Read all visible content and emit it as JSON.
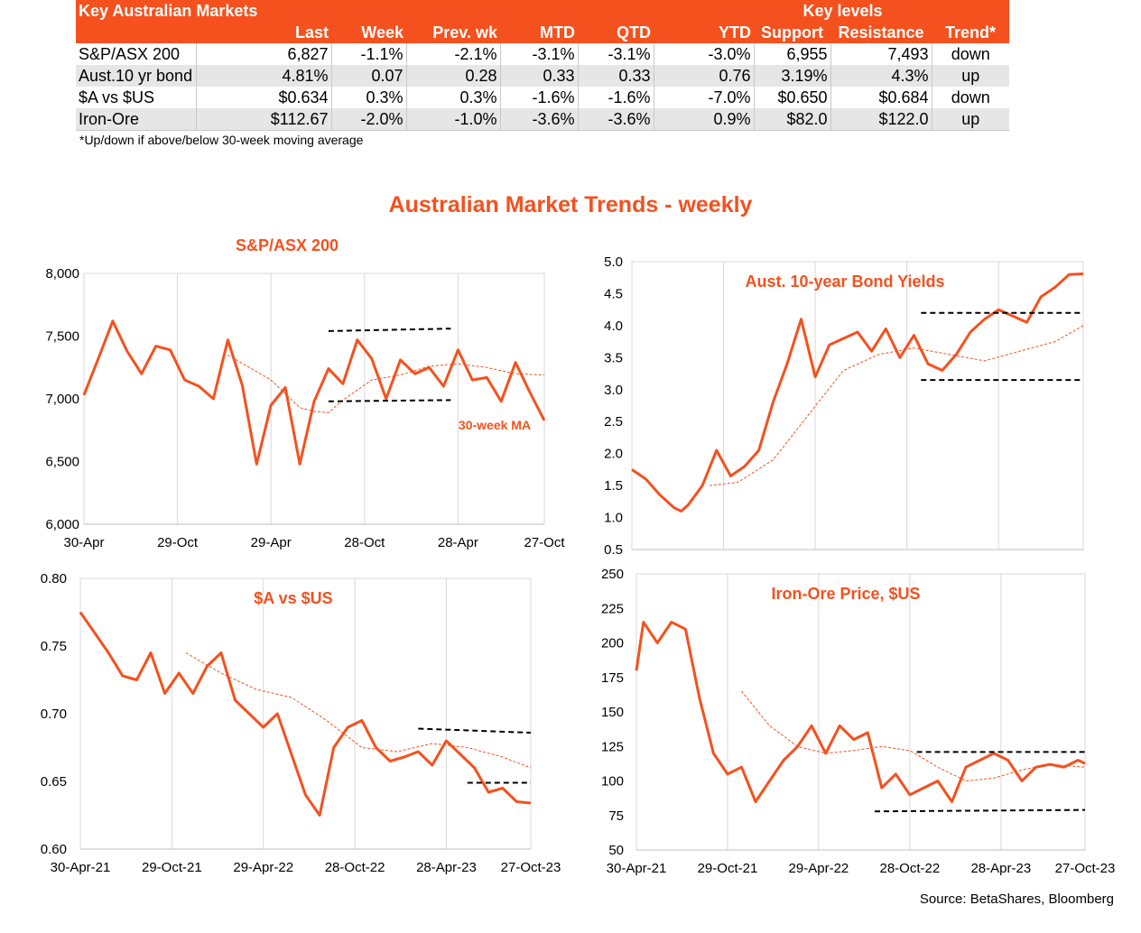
{
  "table": {
    "header_row1": [
      "Key Australian Markets",
      "",
      "",
      "",
      "",
      "",
      "",
      "Key levels",
      "",
      ""
    ],
    "header_row2": [
      "",
      "Last",
      "Week",
      "Prev. wk",
      "MTD",
      "QTD",
      "YTD",
      "Support",
      "Resistance",
      "Trend*"
    ],
    "rows": [
      [
        "S&P/ASX 200",
        "6,827",
        "-1.1%",
        "-2.1%",
        "-3.1%",
        "-3.1%",
        "-3.0%",
        "6,955",
        "7,493",
        "down"
      ],
      [
        "Aust.10 yr bond",
        "4.81%",
        "0.07",
        "0.28",
        "0.33",
        "0.33",
        "0.76",
        "3.19%",
        "4.3%",
        "up"
      ],
      [
        "$A vs $US",
        "$0.634",
        "0.3%",
        "0.3%",
        "-1.6%",
        "-1.6%",
        "-7.0%",
        "$0.650",
        "$0.684",
        "down"
      ],
      [
        "Iron-Ore",
        "$112.67",
        "-2.0%",
        "-1.0%",
        "-3.6%",
        "-3.6%",
        "0.9%",
        "$82.0",
        "$122.0",
        "up"
      ]
    ],
    "footnote": "*Up/down if above/below 30-week moving average"
  },
  "main_title": "Australian Market Trends - weekly",
  "source": "Source:  BetaShares, Bloomberg",
  "colors": {
    "accent": "#F4511E",
    "series": "#F4511E",
    "ma": "#F4511E",
    "levels": "#000000"
  },
  "chart_data": [
    {
      "type": "line",
      "title": "S&P/ASX 200",
      "x_start": "2021-04-30",
      "x_end": "2023-10-27",
      "x_unit": "weeks",
      "xticks": [
        "30-Apr",
        "29-Oct",
        "29-Apr",
        "28-Oct",
        "28-Apr",
        "27-Oct"
      ],
      "ylim": [
        6000,
        8000
      ],
      "yticks": [
        6000,
        6500,
        7000,
        7500,
        8000
      ],
      "ytick_labels": [
        "6,000",
        "6,500",
        "7,000",
        "7,500",
        "8,000"
      ],
      "grid": "vertical",
      "annotation": "30-week MA",
      "series": [
        {
          "key": "price",
          "style": "solid",
          "x": [
            0,
            4,
            8,
            12,
            16,
            20,
            24,
            28,
            32,
            36,
            40,
            44,
            48,
            52,
            56,
            60,
            64,
            68,
            72,
            76,
            80,
            84,
            88,
            92,
            96,
            100,
            104,
            108,
            112,
            116,
            120,
            124,
            128
          ],
          "values": [
            7030,
            7320,
            7620,
            7380,
            7200,
            7420,
            7390,
            7150,
            7100,
            7000,
            7470,
            7110,
            6480,
            6950,
            7090,
            6480,
            6980,
            7240,
            7120,
            7470,
            7320,
            7000,
            7310,
            7200,
            7250,
            7100,
            7390,
            7150,
            7170,
            6980,
            7290,
            7050,
            6827
          ]
        },
        {
          "key": "ma30",
          "style": "dashed-thin",
          "x": [
            40,
            52,
            60,
            64,
            68,
            72,
            80,
            88,
            96,
            104,
            112,
            120,
            128
          ],
          "values": [
            7350,
            7150,
            6930,
            6900,
            6890,
            6990,
            7150,
            7190,
            7260,
            7280,
            7250,
            7200,
            7190
          ]
        },
        {
          "key": "support",
          "style": "dashed-black",
          "x": [
            68,
            102
          ],
          "values": [
            6980,
            6990
          ]
        },
        {
          "key": "resistance",
          "style": "dashed-black",
          "x": [
            68,
            102
          ],
          "values": [
            7540,
            7560
          ]
        }
      ]
    },
    {
      "type": "line",
      "title": "Aust. 10-year Bond Yields",
      "x_start": "2021-04-30",
      "x_end": "2023-10-27",
      "x_unit": "weeks",
      "xticks": [],
      "ylim": [
        0.5,
        5.0
      ],
      "yticks": [
        0.5,
        1.0,
        1.5,
        2.0,
        2.5,
        3.0,
        3.5,
        4.0,
        4.5,
        5.0
      ],
      "ytick_labels": [
        "0.5",
        "1.0",
        "1.5",
        "2.0",
        "2.5",
        "3.0",
        "3.5",
        "4.0",
        "4.5",
        "5.0"
      ],
      "grid": "vertical",
      "series": [
        {
          "key": "yield",
          "style": "solid",
          "x": [
            0,
            4,
            8,
            12,
            14,
            16,
            20,
            24,
            28,
            32,
            36,
            40,
            44,
            48,
            52,
            56,
            60,
            64,
            68,
            72,
            76,
            80,
            84,
            88,
            92,
            96,
            100,
            104,
            108,
            112,
            116,
            120,
            124,
            128
          ],
          "values": [
            1.75,
            1.6,
            1.35,
            1.15,
            1.1,
            1.2,
            1.5,
            2.05,
            1.65,
            1.8,
            2.05,
            2.8,
            3.4,
            4.1,
            3.2,
            3.7,
            3.8,
            3.9,
            3.6,
            3.95,
            3.5,
            3.85,
            3.4,
            3.3,
            3.55,
            3.9,
            4.1,
            4.25,
            4.15,
            4.05,
            4.45,
            4.6,
            4.8,
            4.81
          ]
        },
        {
          "key": "ma30",
          "style": "dashed-thin",
          "x": [
            22,
            30,
            40,
            50,
            60,
            70,
            80,
            90,
            100,
            110,
            120,
            128
          ],
          "values": [
            1.5,
            1.55,
            1.9,
            2.6,
            3.3,
            3.55,
            3.65,
            3.55,
            3.45,
            3.6,
            3.75,
            4.0
          ]
        },
        {
          "key": "support",
          "style": "dashed-black",
          "x": [
            82,
            128
          ],
          "values": [
            3.15,
            3.15
          ]
        },
        {
          "key": "resistance",
          "style": "dashed-black",
          "x": [
            82,
            128
          ],
          "values": [
            4.2,
            4.2
          ]
        }
      ]
    },
    {
      "type": "line",
      "title": "$A vs $US",
      "x_start": "2021-04-30",
      "x_end": "2023-10-27",
      "x_unit": "weeks",
      "xticks": [
        "30-Apr-21",
        "29-Oct-21",
        "29-Apr-22",
        "28-Oct-22",
        "28-Apr-23",
        "27-Oct-23"
      ],
      "ylim": [
        0.6,
        0.8
      ],
      "yticks": [
        0.6,
        0.65,
        0.7,
        0.75,
        0.8
      ],
      "ytick_labels": [
        "0.60",
        "0.65",
        "0.70",
        "0.75",
        "0.80"
      ],
      "grid": "vertical",
      "series": [
        {
          "key": "audusd",
          "style": "solid",
          "x": [
            0,
            4,
            8,
            12,
            16,
            20,
            24,
            28,
            32,
            36,
            40,
            44,
            48,
            52,
            56,
            60,
            64,
            68,
            72,
            76,
            80,
            84,
            88,
            92,
            96,
            100,
            104,
            108,
            112,
            116,
            120,
            124,
            128
          ],
          "values": [
            0.775,
            0.76,
            0.745,
            0.728,
            0.725,
            0.745,
            0.715,
            0.73,
            0.715,
            0.735,
            0.745,
            0.71,
            0.7,
            0.69,
            0.7,
            0.67,
            0.64,
            0.625,
            0.675,
            0.69,
            0.695,
            0.675,
            0.665,
            0.668,
            0.672,
            0.662,
            0.68,
            0.67,
            0.66,
            0.642,
            0.645,
            0.635,
            0.634
          ]
        },
        {
          "key": "ma30",
          "style": "dashed-thin",
          "x": [
            30,
            40,
            50,
            60,
            70,
            80,
            90,
            100,
            110,
            120,
            128
          ],
          "values": [
            0.745,
            0.73,
            0.718,
            0.712,
            0.695,
            0.675,
            0.672,
            0.678,
            0.675,
            0.668,
            0.66
          ]
        },
        {
          "key": "support",
          "style": "dashed-black",
          "x": [
            110,
            128
          ],
          "values": [
            0.649,
            0.649
          ]
        },
        {
          "key": "resistance",
          "style": "dashed-black",
          "x": [
            96,
            128
          ],
          "values": [
            0.689,
            0.686
          ]
        }
      ]
    },
    {
      "type": "line",
      "title": "Iron-Ore Price, $US",
      "x_start": "2021-04-30",
      "x_end": "2023-10-27",
      "x_unit": "weeks",
      "xticks": [
        "30-Apr-21",
        "29-Oct-21",
        "29-Apr-22",
        "28-Oct-22",
        "28-Apr-23",
        "27-Oct-23"
      ],
      "ylim": [
        50,
        250
      ],
      "yticks": [
        50,
        75,
        100,
        125,
        150,
        175,
        200,
        225,
        250
      ],
      "ytick_labels": [
        "50",
        "75",
        "100",
        "125",
        "150",
        "175",
        "200",
        "225",
        "250"
      ],
      "grid": "vertical",
      "series": [
        {
          "key": "iron_ore",
          "style": "solid",
          "x": [
            0,
            2,
            6,
            10,
            14,
            18,
            22,
            26,
            30,
            34,
            38,
            42,
            46,
            50,
            54,
            58,
            62,
            66,
            70,
            74,
            78,
            82,
            86,
            90,
            94,
            98,
            102,
            106,
            110,
            114,
            118,
            122,
            126,
            128
          ],
          "values": [
            180,
            215,
            200,
            215,
            210,
            160,
            120,
            105,
            110,
            85,
            100,
            115,
            125,
            140,
            120,
            140,
            130,
            135,
            95,
            105,
            90,
            95,
            100,
            85,
            110,
            115,
            120,
            115,
            100,
            110,
            112,
            110,
            115,
            112.67
          ]
        },
        {
          "key": "ma30",
          "style": "dashed-thin",
          "x": [
            30,
            38,
            46,
            54,
            62,
            70,
            78,
            86,
            94,
            102,
            110,
            118,
            128
          ],
          "values": [
            165,
            140,
            125,
            120,
            122,
            125,
            122,
            110,
            100,
            102,
            108,
            112,
            110
          ]
        },
        {
          "key": "support",
          "style": "dashed-black",
          "x": [
            68,
            128
          ],
          "values": [
            78,
            79
          ]
        },
        {
          "key": "resistance",
          "style": "dashed-black",
          "x": [
            80,
            128
          ],
          "values": [
            121,
            121
          ]
        }
      ]
    }
  ]
}
